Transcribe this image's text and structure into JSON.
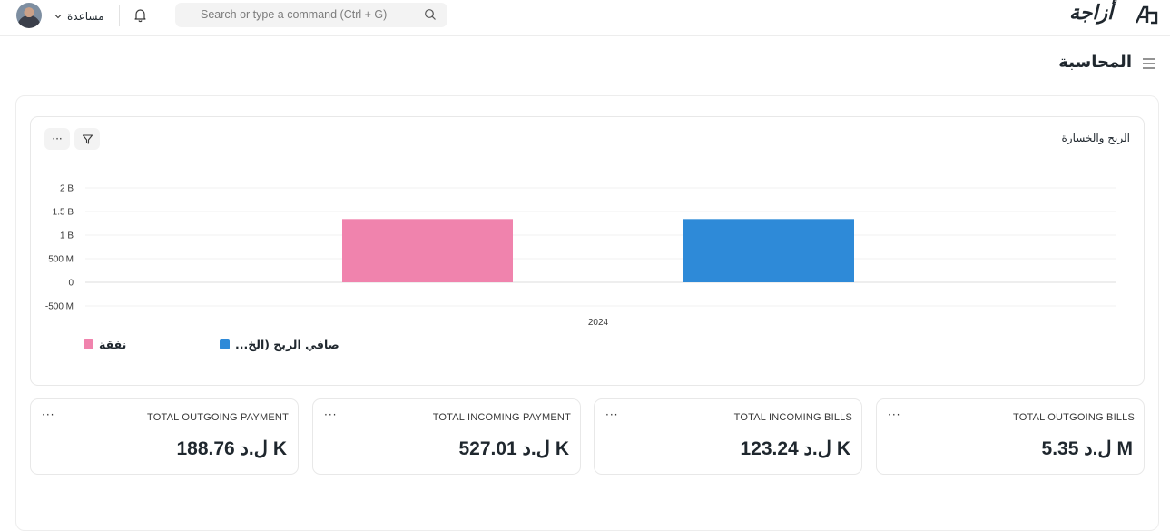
{
  "navbar": {
    "help_label": "مساعدة",
    "search_placeholder": "Search or type a command (Ctrl + G)",
    "logo_text": "أزاجة"
  },
  "page": {
    "title": "المحاسبة"
  },
  "chart_card": {
    "title": "الربح والخسارة",
    "more_label": "···"
  },
  "chart_data": {
    "type": "bar",
    "title": "الربح والخسارة",
    "categories": [
      "2024"
    ],
    "series": [
      {
        "name": "نفقة",
        "values": [
          1340000000
        ],
        "color": "#f083ad"
      },
      {
        "name": "...صافي الربح (الخ",
        "values": [
          1340000000
        ],
        "color": "#2e8ad8"
      }
    ],
    "y_ticks": [
      "2 B",
      "1.5 B",
      "1 B",
      "500 M",
      "0",
      "-500 M"
    ],
    "ylim": [
      -500000000,
      2000000000
    ],
    "grid": true,
    "legend_position": "bottom"
  },
  "number_cards": [
    {
      "label": "TOTAL OUTGOING PAYMENT",
      "value": "ل.د 188.76 K"
    },
    {
      "label": "TOTAL INCOMING PAYMENT",
      "value": "ل.د 527.01 K"
    },
    {
      "label": "TOTAL INCOMING BILLS",
      "value": "ل.د 123.24 K"
    },
    {
      "label": "TOTAL OUTGOING BILLS",
      "value": "ل.د 5.35 M"
    }
  ],
  "more_glyph": "···",
  "colors": {
    "expense": "#f083ad",
    "net_profit": "#2e8ad8"
  }
}
